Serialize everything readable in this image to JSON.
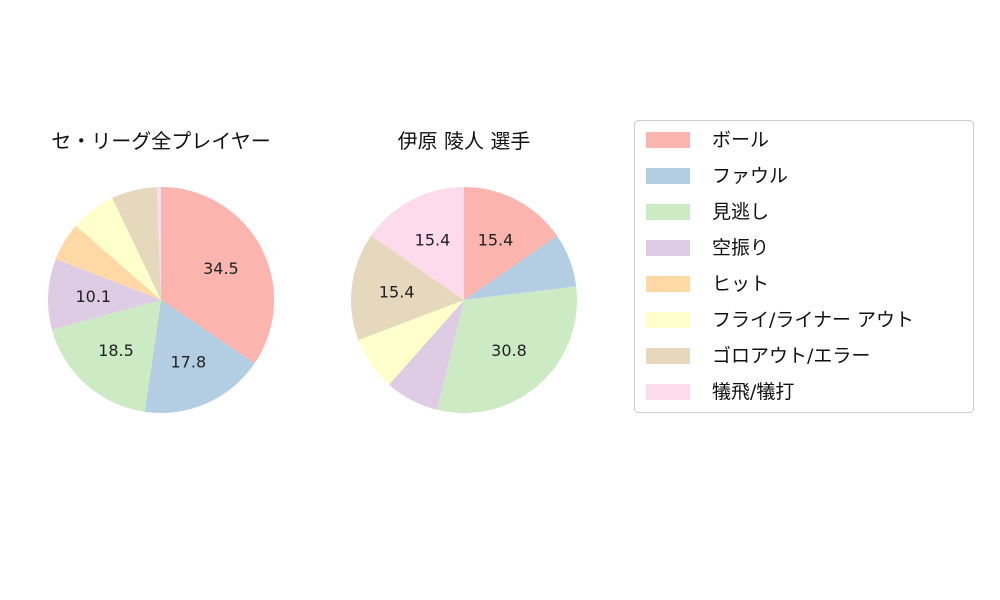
{
  "chart_data": {
    "type": "pie",
    "categories": [
      "ボール",
      "ファウル",
      "見逃し",
      "空振り",
      "ヒット",
      "フライ/ライナー アウト",
      "ゴロアウト/エラー",
      "犠飛/犠打"
    ],
    "colors": [
      "#fbb4ae",
      "#b3cde3",
      "#ccebc5",
      "#decbe4",
      "#fed9a6",
      "#ffffcc",
      "#e5d8bd",
      "#fddaec"
    ],
    "legend": {
      "placement": "right"
    },
    "charts": [
      {
        "title": "セ・リーグ全プレイヤー",
        "values": [
          34.5,
          17.8,
          18.5,
          10.1,
          5.5,
          6.5,
          6.5,
          0.6
        ],
        "labels": [
          "34.5",
          "17.8",
          "18.5",
          "10.1",
          "",
          "",
          "",
          ""
        ]
      },
      {
        "title": "伊原 陵人  選手",
        "values": [
          15.4,
          7.7,
          30.8,
          7.7,
          0.0,
          7.7,
          15.4,
          15.4
        ],
        "labels": [
          "15.4",
          "",
          "30.8",
          "",
          "",
          "",
          "15.4",
          "15.4"
        ]
      }
    ]
  }
}
